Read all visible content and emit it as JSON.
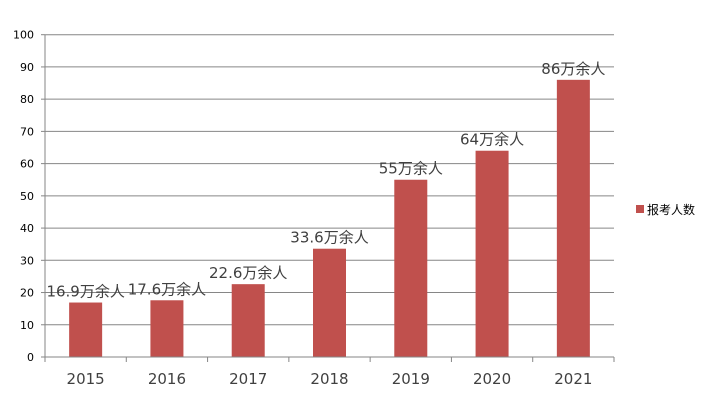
{
  "chart_data": {
    "type": "bar",
    "categories": [
      "2015",
      "2016",
      "2017",
      "2018",
      "2019",
      "2020",
      "2021"
    ],
    "series": [
      {
        "name": "报考人数",
        "values": [
          16.9,
          17.6,
          22.6,
          33.6,
          55,
          64,
          86
        ],
        "data_labels": [
          "16.9万余人",
          "17.6万余人",
          "22.6万余人",
          "33.6万余人",
          "55万余人",
          "64万余人",
          "86万余人"
        ],
        "color": "#C0504D"
      }
    ],
    "ylim": [
      0,
      100
    ],
    "yticks": [
      0,
      10,
      20,
      30,
      40,
      50,
      60,
      70,
      80,
      90,
      100
    ],
    "grid": true,
    "legend": "right",
    "title": "",
    "xlabel": "",
    "ylabel": ""
  }
}
